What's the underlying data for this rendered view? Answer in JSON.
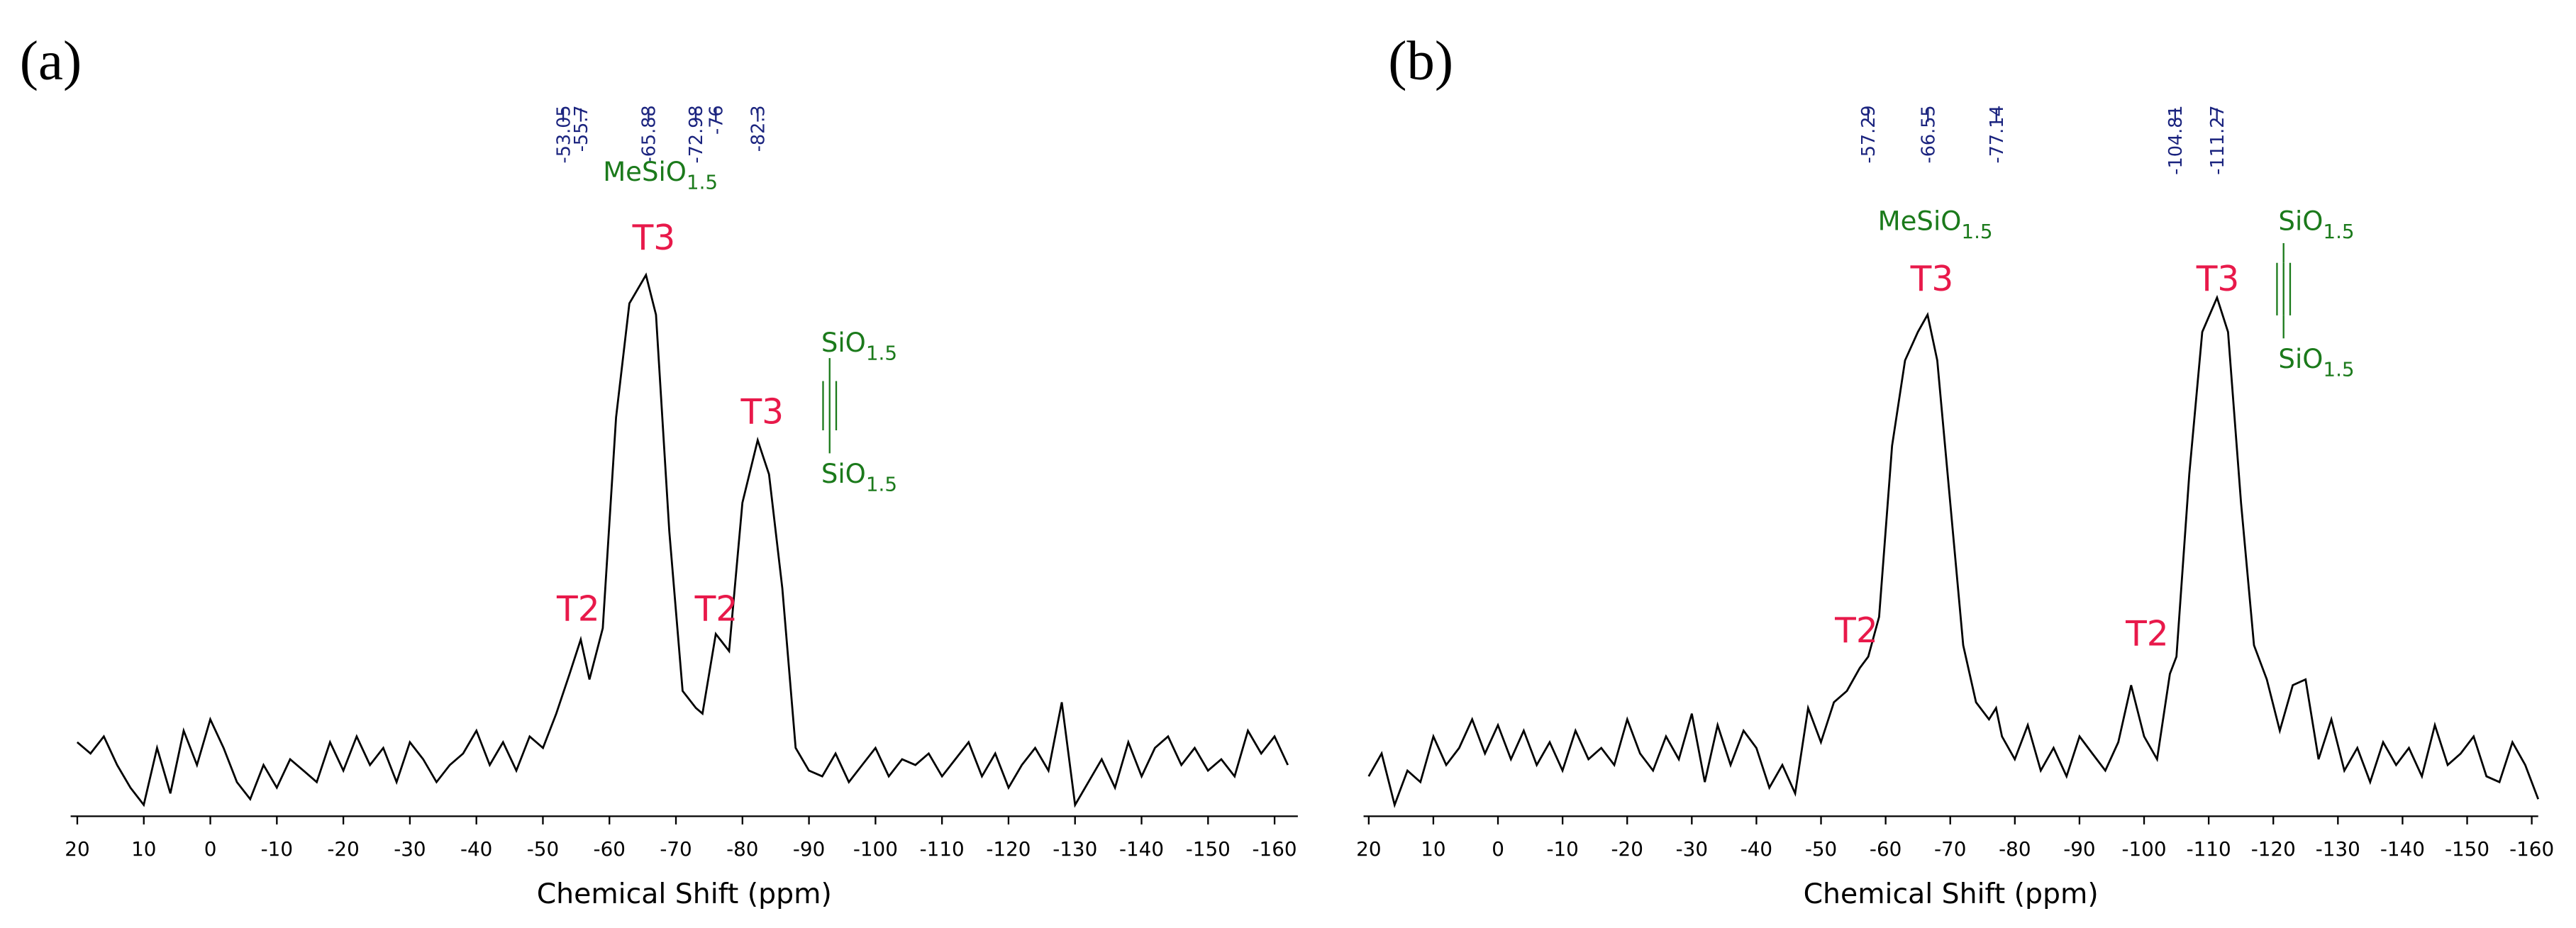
{
  "chart_data": [
    {
      "type": "line",
      "panel_label": "(a)",
      "x_label": "Chemical Shift (ppm)",
      "color": "#000000",
      "xlim": [
        21,
        -163.5
      ],
      "xticks": [
        20,
        10,
        0,
        -10,
        -20,
        -30,
        -40,
        -50,
        -60,
        -70,
        -80,
        -90,
        -100,
        -110,
        -120,
        -130,
        -140,
        -150,
        -160
      ],
      "ylim": [
        0,
        100
      ],
      "x": [
        20,
        18,
        16,
        14,
        12,
        10,
        8,
        6,
        4,
        2,
        0,
        -2,
        -4,
        -6,
        -8,
        -10,
        -12,
        -14,
        -16,
        -18,
        -20,
        -22,
        -24,
        -26,
        -28,
        -30,
        -32,
        -34,
        -36,
        -38,
        -40,
        -42,
        -44,
        -46,
        -48,
        -50,
        -52,
        -54,
        -55.7,
        -57,
        -59,
        -61,
        -63,
        -65.5,
        -67,
        -69,
        -71,
        -73,
        -74,
        -76,
        -78,
        -80,
        -82.3,
        -84,
        -86,
        -88,
        -90,
        -92,
        -94,
        -96,
        -98,
        -100,
        -102,
        -104,
        -106,
        -108,
        -110,
        -112,
        -114,
        -116,
        -118,
        -120,
        -122,
        -124,
        -126,
        -128,
        -130,
        -132,
        -134,
        -136,
        -138,
        -140,
        -142,
        -144,
        -146,
        -148,
        -150,
        -152,
        -154,
        -156,
        -158,
        -160,
        -162
      ],
      "values": [
        13,
        11,
        14,
        9,
        5,
        2,
        12,
        4,
        15,
        9,
        17,
        12,
        6,
        3,
        9,
        5,
        10,
        8,
        6,
        13,
        8,
        14,
        9,
        12,
        6,
        13,
        10,
        6,
        9,
        11,
        15,
        9,
        13,
        8,
        14,
        12,
        18,
        25,
        31,
        24,
        33,
        70,
        90,
        95,
        88,
        50,
        22,
        19,
        18,
        32,
        29,
        55,
        66,
        60,
        40,
        12,
        8,
        7,
        11,
        6,
        9,
        12,
        7,
        10,
        9,
        11,
        7,
        10,
        13,
        7,
        11,
        5,
        9,
        12,
        8,
        20,
        2,
        6,
        10,
        5,
        13,
        7,
        12,
        14,
        9,
        12,
        8,
        10,
        7,
        15,
        11,
        14,
        9
      ],
      "peak_labels": [
        -53.05,
        -55.7,
        -65.88,
        -72.98,
        -76.0,
        -82.3
      ],
      "annotations": [
        {
          "text": "T3"
        },
        {
          "text": "T3"
        },
        {
          "text": "T2"
        },
        {
          "text": "T2"
        },
        {
          "text": "MeSiO",
          "sub": "1.5"
        },
        {
          "text": "SiO",
          "sub": "1.5"
        },
        {
          "text": "SiO",
          "sub": "1.5"
        }
      ]
    },
    {
      "type": "line",
      "panel_label": "(b)",
      "x_label": "Chemical Shift (ppm)",
      "color": "#000000",
      "xlim": [
        20.8,
        -161
      ],
      "xticks": [
        20,
        10,
        0,
        -10,
        -20,
        -30,
        -40,
        -50,
        -60,
        -70,
        -80,
        -90,
        -100,
        -110,
        -120,
        -130,
        -140,
        -150,
        -160
      ],
      "ylim": [
        0,
        100
      ],
      "x": [
        20,
        18,
        16,
        14,
        12,
        10,
        8,
        6,
        4,
        2,
        0,
        -2,
        -4,
        -6,
        -8,
        -10,
        -12,
        -14,
        -16,
        -18,
        -20,
        -22,
        -24,
        -26,
        -28,
        -30,
        -32,
        -34,
        -36,
        -38,
        -40,
        -42,
        -44,
        -46,
        -48,
        -50,
        -52,
        -54,
        -56,
        -57.3,
        -59,
        -61,
        -63,
        -65,
        -66.5,
        -68,
        -70,
        -72,
        -74,
        -76,
        -77.1,
        -78,
        -80,
        -82,
        -84,
        -86,
        -88,
        -90,
        -92,
        -94,
        -96,
        -98,
        -100,
        -102,
        -104,
        -105,
        -107,
        -109,
        -111.3,
        -113,
        -115,
        -117,
        -119,
        -121,
        -123,
        -125,
        -127,
        -129,
        -131,
        -133,
        -135,
        -137,
        -139,
        -141,
        -143,
        -145,
        -147,
        -149,
        -151,
        -153,
        -155,
        -157,
        -159,
        -161
      ],
      "values": [
        7,
        11,
        2,
        8,
        6,
        14,
        9,
        12,
        17,
        11,
        16,
        10,
        15,
        9,
        13,
        8,
        15,
        10,
        12,
        9,
        17,
        11,
        8,
        14,
        10,
        18,
        6,
        16,
        9,
        15,
        12,
        5,
        9,
        4,
        19,
        13,
        20,
        22,
        26,
        28,
        35,
        65,
        80,
        85,
        88,
        80,
        55,
        30,
        20,
        17,
        19,
        14,
        10,
        16,
        8,
        12,
        7,
        14,
        11,
        8,
        13,
        23,
        14,
        10,
        25,
        28,
        60,
        85,
        91,
        85,
        55,
        30,
        24,
        15,
        23,
        24,
        10,
        17,
        8,
        12,
        6,
        13,
        9,
        12,
        7,
        16,
        9,
        11,
        14,
        7,
        6,
        13,
        9,
        3
      ],
      "peak_labels": [
        -57.29,
        -66.55,
        -77.14,
        -104.81,
        -111.27
      ],
      "annotations": [
        {
          "text": "T3"
        },
        {
          "text": "T3"
        },
        {
          "text": "T2"
        },
        {
          "text": "T2"
        },
        {
          "text": "MeSiO",
          "sub": "1.5"
        },
        {
          "text": "SiO",
          "sub": "1.5"
        },
        {
          "text": "SiO",
          "sub": "1.5"
        }
      ]
    }
  ]
}
